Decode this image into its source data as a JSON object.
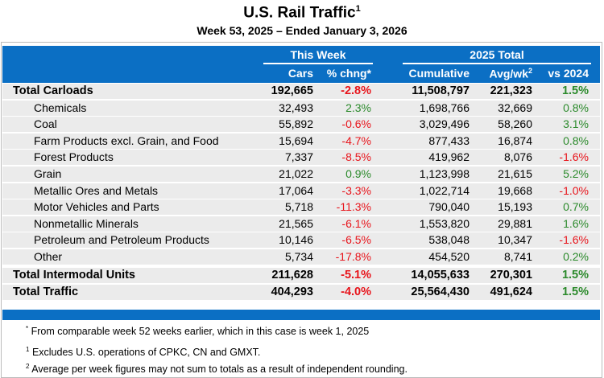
{
  "title": "U.S. Rail Traffic",
  "title_sup": "1",
  "subtitle": "Week 53, 2025 – Ended January 3, 2026",
  "header": {
    "group_this_week": "This Week",
    "group_total": "2025 Total",
    "cols": [
      "Cars",
      "% chng*",
      "Cumulative",
      "Avg/wk",
      "vs 2024"
    ],
    "avg_sup": "2"
  },
  "colors": {
    "header_blue": "#0b6fc4",
    "positive": "#2b8a2b",
    "negative": "#e8141b",
    "row_bg": "#ebebeb"
  },
  "rows": [
    {
      "label": "Total Carloads",
      "type": "total",
      "cars": "192,665",
      "chng": "-2.8%",
      "cumulative": "11,508,797",
      "avg": "221,323",
      "vs": "1.5%"
    },
    {
      "label": "Chemicals",
      "type": "sub",
      "cars": "32,493",
      "chng": "2.3%",
      "cumulative": "1,698,766",
      "avg": "32,669",
      "vs": "0.8%"
    },
    {
      "label": "Coal",
      "type": "sub",
      "cars": "55,892",
      "chng": "-0.6%",
      "cumulative": "3,029,496",
      "avg": "58,260",
      "vs": "3.1%"
    },
    {
      "label": "Farm Products excl. Grain, and Food",
      "type": "sub",
      "cars": "15,694",
      "chng": "-4.7%",
      "cumulative": "877,433",
      "avg": "16,874",
      "vs": "0.8%"
    },
    {
      "label": "Forest Products",
      "type": "sub",
      "cars": "7,337",
      "chng": "-8.5%",
      "cumulative": "419,962",
      "avg": "8,076",
      "vs": "-1.6%"
    },
    {
      "label": "Grain",
      "type": "sub",
      "cars": "21,022",
      "chng": "0.9%",
      "cumulative": "1,123,998",
      "avg": "21,615",
      "vs": "5.2%"
    },
    {
      "label": "Metallic Ores and Metals",
      "type": "sub",
      "cars": "17,064",
      "chng": "-3.3%",
      "cumulative": "1,022,714",
      "avg": "19,668",
      "vs": "-1.0%"
    },
    {
      "label": "Motor Vehicles and Parts",
      "type": "sub",
      "cars": "5,718",
      "chng": "-11.3%",
      "cumulative": "790,040",
      "avg": "15,193",
      "vs": "0.7%"
    },
    {
      "label": "Nonmetallic Minerals",
      "type": "sub",
      "cars": "21,565",
      "chng": "-6.1%",
      "cumulative": "1,553,820",
      "avg": "29,881",
      "vs": "1.6%"
    },
    {
      "label": "Petroleum and Petroleum Products",
      "type": "sub",
      "cars": "10,146",
      "chng": "-6.5%",
      "cumulative": "538,048",
      "avg": "10,347",
      "vs": "-1.6%"
    },
    {
      "label": "Other",
      "type": "sub",
      "cars": "5,734",
      "chng": "-17.8%",
      "cumulative": "454,520",
      "avg": "8,741",
      "vs": "0.2%"
    },
    {
      "label": "Total Intermodal Units",
      "type": "total",
      "cars": "211,628",
      "chng": "-5.1%",
      "cumulative": "14,055,633",
      "avg": "270,301",
      "vs": "1.5%"
    },
    {
      "label": "Total Traffic",
      "type": "total",
      "cars": "404,293",
      "chng": "-4.0%",
      "cumulative": "25,564,430",
      "avg": "491,624",
      "vs": "1.5%"
    }
  ],
  "footnotes": [
    {
      "mark": "*",
      "text": "From comparable week 52 weeks earlier, which in this case is week 1, 2025"
    },
    {
      "mark": "1",
      "text": "Excludes U.S. operations of CPKC, CN and GMXT."
    },
    {
      "mark": "2",
      "text": "Average per week figures may not sum to totals as a result of independent rounding."
    }
  ]
}
